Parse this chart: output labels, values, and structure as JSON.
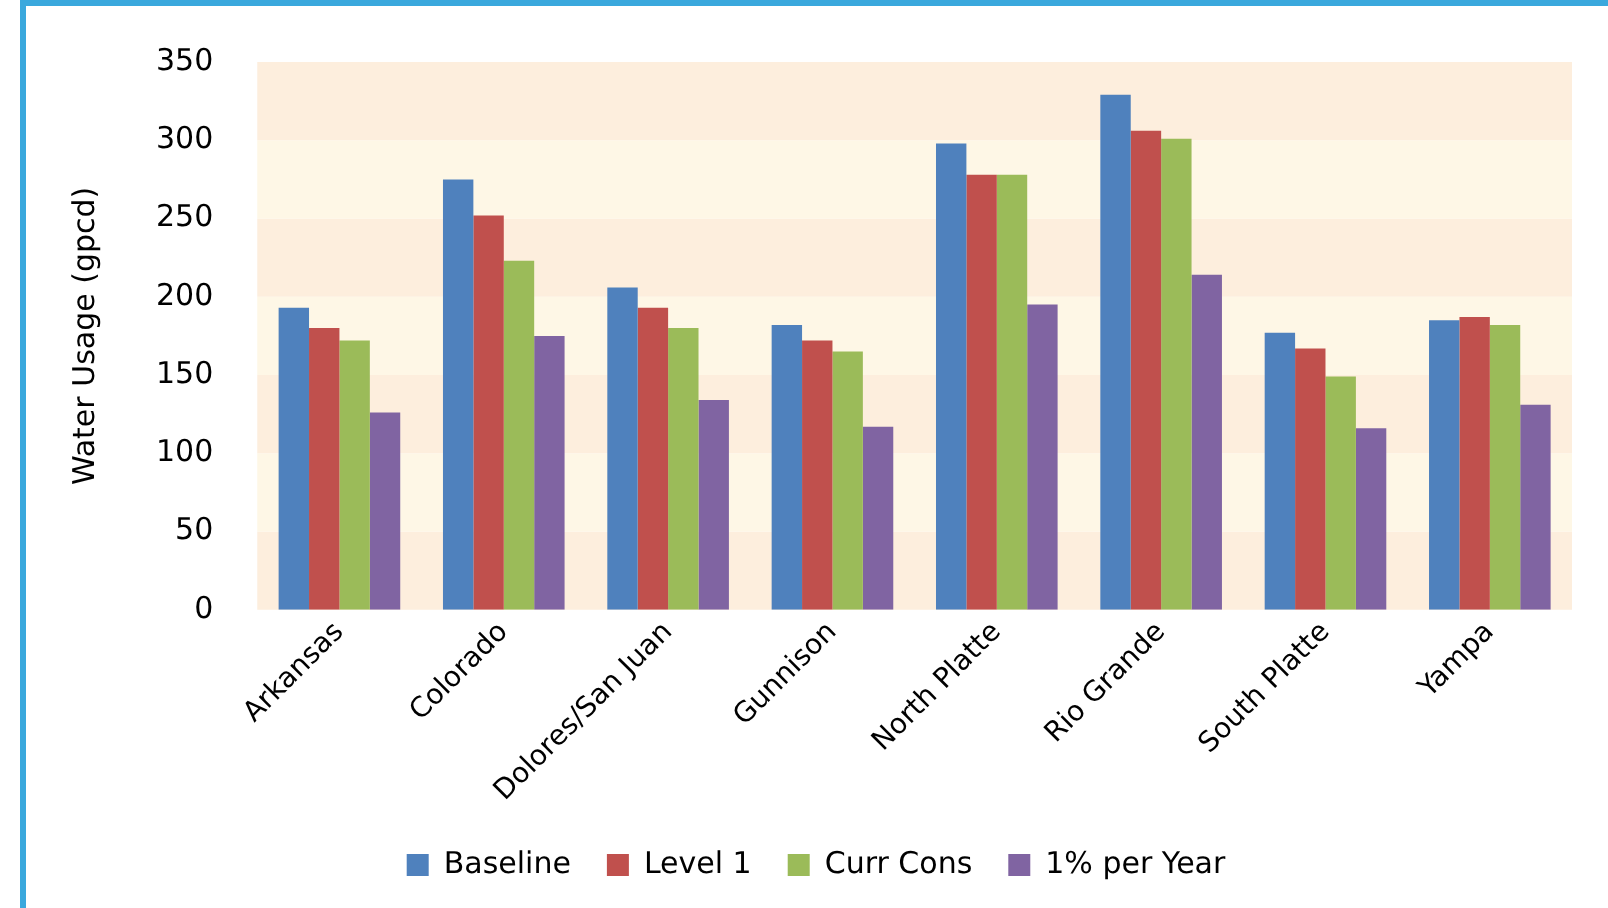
{
  "chart_data": {
    "type": "bar",
    "ylabel": "Water Usage (gpcd)",
    "categories": [
      "Arkansas",
      "Colorado",
      "Dolores/San Juan",
      "Gunnison",
      "North Platte",
      "Rio Grande",
      "South Platte",
      "Yampa"
    ],
    "series": [
      {
        "name": "Baseline",
        "color": "#4f81bd",
        "values": [
          193,
          275,
          206,
          182,
          298,
          329,
          177,
          185
        ]
      },
      {
        "name": "Level 1",
        "color": "#c0504d",
        "values": [
          180,
          252,
          193,
          172,
          278,
          306,
          167,
          187
        ]
      },
      {
        "name": "Curr Cons",
        "color": "#9bbb59",
        "values": [
          172,
          223,
          180,
          165,
          278,
          301,
          149,
          182
        ]
      },
      {
        "name": "1% per Year",
        "color": "#8064a2",
        "values": [
          126,
          175,
          134,
          117,
          195,
          214,
          116,
          131
        ]
      }
    ],
    "ylim": [
      0,
      350
    ],
    "yticks": [
      0,
      50,
      100,
      150,
      200,
      250,
      300,
      350
    ],
    "grid": false,
    "legend": "bottom"
  }
}
